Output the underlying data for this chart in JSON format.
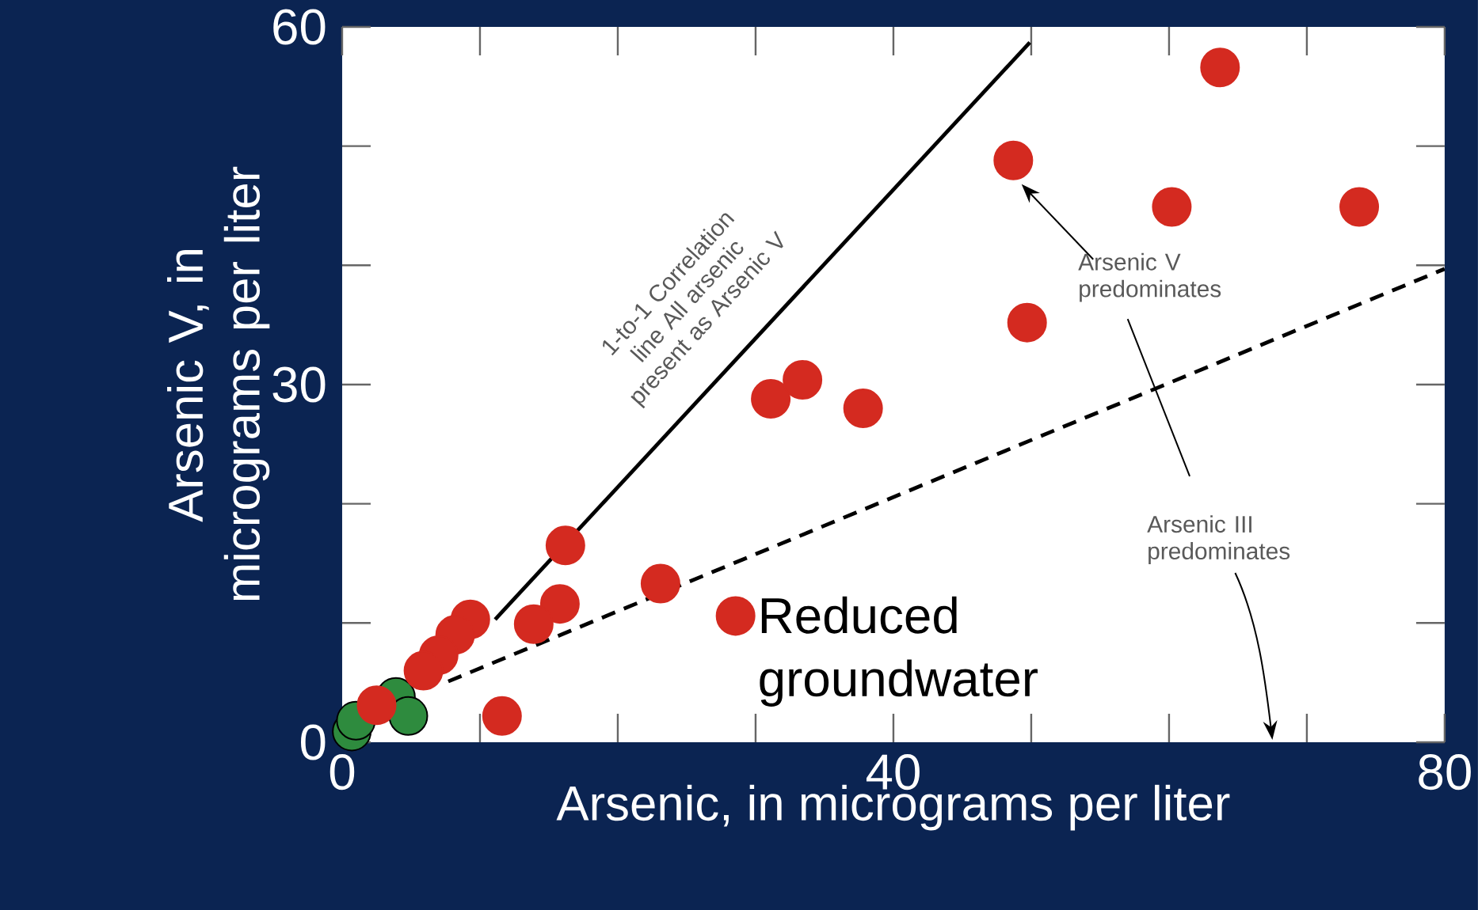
{
  "chart_data": {
    "type": "scatter",
    "xlabel": "Arsenic, in micrograms per liter",
    "ylabel": "Arsenic V, in micrograms per liter",
    "xlim": [
      0,
      80
    ],
    "ylim": [
      0,
      60
    ],
    "xticks": [
      0,
      40,
      80
    ],
    "yticks": [
      0,
      30,
      60
    ],
    "legend": "bottom",
    "grid": false,
    "annotations": [
      "1-to-1 Correlation line All arsenic present as Arsenic V",
      "Arsenic V predominates",
      "Arsenic III predominates"
    ],
    "series": [
      {
        "type": "line",
        "color": "#000000",
        "line_style": "solid",
        "marker": "none",
        "x": [
          11.1,
          49.9
        ],
        "values": [
          10.3,
          58.7
        ]
      },
      {
        "type": "line",
        "color": "#000000",
        "line_style": "dashed",
        "marker": "none",
        "x": [
          7.7,
          80
        ],
        "values": [
          5.1,
          39.7
        ]
      },
      {
        "color": "#2e8b3e",
        "marker": "circle",
        "x": [
          0.7,
          1.0,
          3.9,
          4.8
        ],
        "values": [
          0.9,
          1.8,
          3.8,
          2.2
        ]
      },
      {
        "name": "Reduced groundwater",
        "color": "#d42a20",
        "marker": "circle",
        "x": [
          16.2,
          31.1,
          33.4,
          37.8,
          23.1,
          15.8,
          13.9,
          9.3,
          8.2,
          7.0,
          5.9,
          11.6,
          2.5,
          63.7,
          48.7,
          60.2,
          73.8,
          49.7
        ],
        "values": [
          16.5,
          28.8,
          30.4,
          28.0,
          13.3,
          11.6,
          9.9,
          10.3,
          9.0,
          7.3,
          6.0,
          2.2,
          3.1,
          56.6,
          48.8,
          44.9,
          44.9,
          35.2
        ]
      }
    ]
  }
}
